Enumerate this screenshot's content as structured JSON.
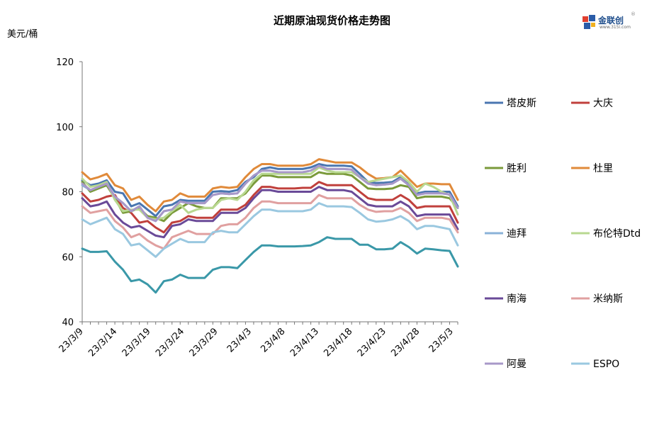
{
  "title": "近期原油现货价格走势图",
  "y_unit": "美元/桶",
  "brand": {
    "name": "金联创",
    "sub": "www.315i.com",
    "reg": "®"
  },
  "chart_data": {
    "type": "line",
    "ylim": [
      40,
      120
    ],
    "yticks": [
      40,
      60,
      80,
      100,
      120
    ],
    "x_tick_labels": [
      "23/3/9",
      "23/3/14",
      "23/3/19",
      "23/3/24",
      "23/3/29",
      "23/4/3",
      "23/4/8",
      "23/4/13",
      "23/4/18",
      "23/4/23",
      "23/4/28",
      "23/5/3"
    ],
    "grid": false,
    "legend": "right",
    "series": [
      {
        "name": "塔皮斯",
        "color": "#4a76b0",
        "values": [
          83.5,
          82,
          82.5,
          83.5,
          80,
          79.5,
          75.5,
          76.5,
          74.5,
          72.5,
          75.5,
          76,
          77.5,
          77.2,
          77.2,
          77.2,
          80,
          80.2,
          80,
          80.5,
          83,
          84.5,
          87,
          87.5,
          87,
          87,
          87,
          87,
          87.5,
          88.5,
          88,
          88,
          88,
          87.8,
          85.5,
          83,
          82.7,
          82.8,
          83,
          84.5,
          82.5,
          79.5,
          80,
          80,
          80,
          80,
          75.5
        ]
      },
      {
        "name": "大庆",
        "color": "#c0403c",
        "values": [
          79.5,
          77,
          77.5,
          78.5,
          79,
          75,
          73.5,
          70.5,
          71,
          69,
          67.5,
          70.5,
          71,
          72.5,
          72,
          72,
          72,
          74.5,
          74.5,
          74.5,
          76,
          79,
          81.5,
          81.5,
          81,
          81,
          81,
          81.2,
          81.2,
          83,
          82,
          82,
          82,
          82,
          80,
          78,
          77.5,
          77.5,
          77.5,
          79,
          77.5,
          75,
          75.5,
          75.5,
          75.5,
          75.5,
          70.5
        ]
      },
      {
        "name": "胜利",
        "color": "#7a9a3a",
        "values": [
          83,
          80,
          81,
          82,
          78,
          73.5,
          74,
          75,
          72.5,
          72,
          71,
          73.5,
          75,
          76.5,
          75.5,
          75,
          75,
          78,
          78,
          78,
          79.5,
          82.5,
          85,
          85,
          84.5,
          84.5,
          84.5,
          84.5,
          84.5,
          86,
          85.5,
          85.5,
          85.5,
          85,
          83,
          81,
          80.8,
          80.8,
          81,
          82,
          81.5,
          78,
          78.5,
          78.5,
          78.5,
          78,
          75
        ]
      },
      {
        "name": "杜里",
        "color": "#e08a3a",
        "values": [
          86,
          83.8,
          84.5,
          85.5,
          82,
          81,
          77.5,
          78.5,
          76,
          74,
          77,
          77.5,
          79.5,
          78.5,
          78.5,
          78.5,
          81,
          81.5,
          81.2,
          81.5,
          84.5,
          87,
          88.5,
          88.5,
          88,
          88,
          88,
          88,
          88.5,
          90,
          89.5,
          89,
          89,
          89,
          87.5,
          85.5,
          84,
          84.2,
          84.5,
          86.5,
          84,
          81.5,
          82.5,
          82.5,
          82.3,
          82.3,
          77.5
        ]
      },
      {
        "name": "迪拜",
        "color": "#8ab2d8",
        "values": [
          82,
          80.5,
          81.5,
          82.5,
          78.5,
          76.5,
          74,
          75.5,
          72,
          71,
          74,
          74.5,
          77,
          76.5,
          76.5,
          76.5,
          79,
          79.5,
          79.3,
          79.5,
          82.5,
          85,
          86.5,
          86.5,
          86,
          86,
          86,
          86,
          86.5,
          88,
          87,
          87,
          87,
          86.8,
          84.5,
          82.5,
          82,
          82.2,
          82.5,
          84,
          82,
          79,
          79.5,
          79.5,
          79.5,
          79.2,
          75
        ]
      },
      {
        "name": "布伦特Dtd",
        "color": "#b8d890",
        "values": [
          84,
          81.5,
          82,
          83,
          77.5,
          74,
          74.5,
          74.5,
          72,
          71.5,
          72,
          74,
          76,
          73.5,
          74.5,
          75,
          75,
          77.5,
          78,
          77.5,
          80,
          83.5,
          85.5,
          85.5,
          85.5,
          85.5,
          85.5,
          85.5,
          85.5,
          87.5,
          86.5,
          86,
          86,
          86,
          84.5,
          83,
          83.5,
          84,
          84.5,
          85,
          83,
          80,
          82.5,
          81.5,
          80,
          79,
          73
        ]
      },
      {
        "name": "南海",
        "color": "#6a4a98",
        "values": [
          78,
          75.5,
          76,
          77,
          73,
          70.5,
          69,
          69.5,
          68,
          66.5,
          66,
          69.5,
          70,
          71.5,
          71,
          71,
          71,
          73.5,
          73.5,
          73.5,
          75,
          78,
          80.5,
          80.5,
          80,
          80,
          80,
          80,
          80,
          81.5,
          80.5,
          80.5,
          80.5,
          80,
          78,
          76,
          75.5,
          75.5,
          75.5,
          77,
          75.5,
          72.5,
          73,
          73,
          73,
          73,
          68.5
        ]
      },
      {
        "name": "米纳斯",
        "color": "#e0a0a0",
        "values": [
          75.5,
          73.5,
          74,
          74.5,
          71,
          69,
          66,
          67,
          65,
          63.5,
          62.5,
          66,
          67,
          68,
          67,
          67,
          67,
          69.5,
          70,
          70,
          72,
          75,
          77,
          77,
          76.5,
          76.5,
          76.5,
          76.5,
          76.5,
          79,
          78,
          78,
          78,
          78,
          76,
          74.5,
          73.8,
          74,
          74,
          75,
          73.5,
          71,
          72,
          72,
          72,
          71.5,
          67.5
        ]
      },
      {
        "name": "阿曼",
        "color": "#a898c8",
        "values": [
          82.5,
          80.5,
          81.5,
          82.5,
          78.5,
          76.5,
          74,
          75.5,
          72,
          71,
          74,
          74.5,
          77,
          76.5,
          76.5,
          76.5,
          79,
          79.5,
          79.3,
          79.5,
          82.5,
          85,
          86.5,
          86.5,
          86,
          86,
          86,
          86,
          86.5,
          88,
          87,
          87,
          87,
          86.8,
          84.5,
          82.5,
          82,
          82.2,
          82.5,
          84,
          82,
          79,
          79.5,
          79.5,
          79.5,
          79.2,
          75
        ]
      },
      {
        "name": "ESPO",
        "color": "#9ac8e0",
        "values": [
          71.5,
          70,
          71,
          72,
          68.5,
          67,
          63.5,
          64,
          62,
          60,
          62.5,
          64,
          65.5,
          64.5,
          64.5,
          64.5,
          67.5,
          68,
          67.5,
          67.5,
          70,
          72.5,
          74.5,
          74.5,
          74,
          74,
          74,
          74,
          74.5,
          76.5,
          75.5,
          75.5,
          75.5,
          75.3,
          73.5,
          71.5,
          70.8,
          71,
          71.5,
          72.5,
          71,
          68.5,
          69.5,
          69.5,
          69,
          68.5,
          63.5
        ]
      },
      {
        "name": "",
        "color": "#3a98a8",
        "values": [
          62.5,
          61.5,
          61.5,
          61.7,
          58.5,
          56,
          52.5,
          53,
          51.5,
          49,
          52.5,
          53,
          54.5,
          53.5,
          53.5,
          53.5,
          56,
          56.8,
          56.8,
          56.5,
          59,
          61.5,
          63.5,
          63.5,
          63.2,
          63.2,
          63.2,
          63.3,
          63.5,
          64.5,
          66,
          65.5,
          65.5,
          65.5,
          63.7,
          63.7,
          62.3,
          62.3,
          62.5,
          64.5,
          63,
          61,
          62.5,
          62.3,
          62,
          61.8,
          57
        ]
      }
    ]
  }
}
